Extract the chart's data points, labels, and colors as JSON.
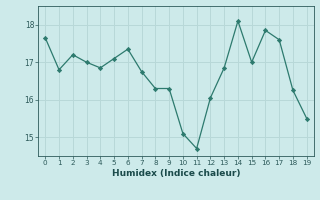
{
  "x": [
    0,
    1,
    2,
    3,
    4,
    5,
    6,
    7,
    8,
    9,
    10,
    11,
    12,
    13,
    14,
    15,
    16,
    17,
    18,
    19
  ],
  "y": [
    17.65,
    16.8,
    17.2,
    17.0,
    16.85,
    17.1,
    17.35,
    16.75,
    16.3,
    16.3,
    15.1,
    14.7,
    16.05,
    16.85,
    18.1,
    17.0,
    17.85,
    17.6,
    16.25,
    15.5
  ],
  "xlabel": "Humidex (Indice chaleur)",
  "ylim": [
    14.5,
    18.5
  ],
  "xlim": [
    -0.5,
    19.5
  ],
  "yticks": [
    15,
    16,
    17,
    18
  ],
  "xticks": [
    0,
    1,
    2,
    3,
    4,
    5,
    6,
    7,
    8,
    9,
    10,
    11,
    12,
    13,
    14,
    15,
    16,
    17,
    18,
    19
  ],
  "line_color": "#2d7a6e",
  "marker_color": "#2d7a6e",
  "bg_color": "#cdeaea",
  "grid_color": "#b8d8d8",
  "tick_label_color": "#2d5a5a",
  "xlabel_color": "#1a4a4a"
}
